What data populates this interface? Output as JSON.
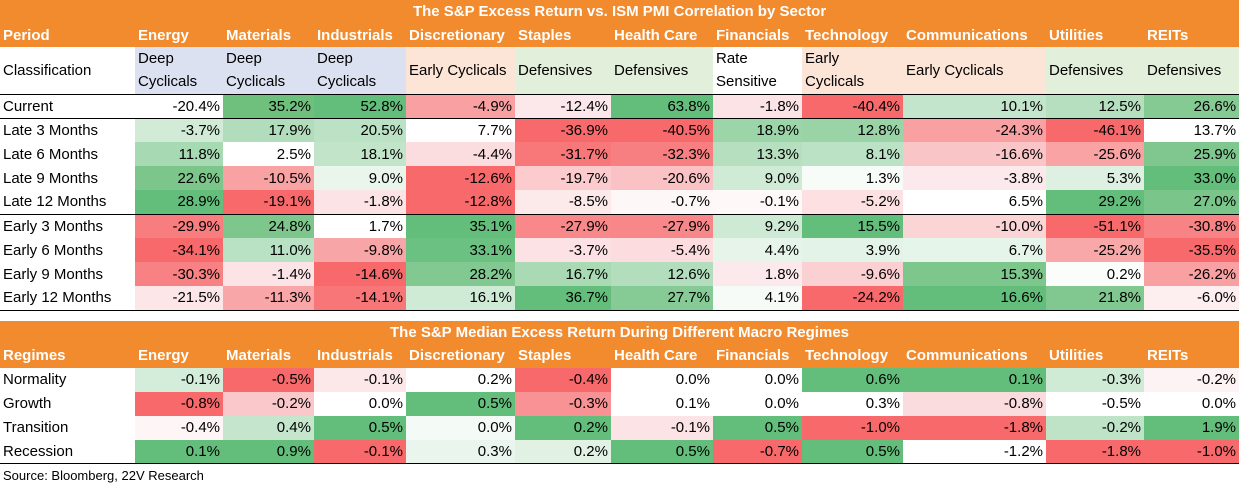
{
  "table1": {
    "title": "The S&P Excess Return vs. ISM PMI Correlation by Sector",
    "period_label": "Period",
    "columns": [
      "Energy",
      "Materials",
      "Industrials",
      "Discretionary",
      "Staples",
      "Health Care",
      "Financials",
      "Technology",
      "Communications",
      "Utilities",
      "REITs"
    ],
    "classification_label": "Classification",
    "classifications": [
      "Deep Cyclicals",
      "Deep Cyclicals",
      "Deep Cyclicals",
      "Early Cyclicals",
      "Defensives",
      "Defensives",
      "Rate Sensitive",
      "Early Cyclicals",
      "Early Cyclicals",
      "Defensives",
      "Defensives"
    ],
    "classification_colors": [
      "#DCE1F1",
      "#DCE1F1",
      "#DCE1F1",
      "#FCE4D6",
      "#E2EFDA",
      "#E2EFDA",
      "#FFFFFF",
      "#FCE4D6",
      "#FCE4D6",
      "#E2EFDA",
      "#E2EFDA"
    ],
    "rows": [
      {
        "label": "Current",
        "values": [
          "-20.4%",
          "35.2%",
          "52.8%",
          "-4.9%",
          "-12.4%",
          "63.8%",
          "-1.8%",
          "-40.4%",
          "10.1%",
          "12.5%",
          "26.6%"
        ],
        "colors": [
          "#FFFFFF",
          "#70C07D",
          "#63BE7B",
          "#F8A0A2",
          "#FCE8EA",
          "#63BE7B",
          "#FBE3E6",
          "#F8696B",
          "#C3E5CB",
          "#B5DFBF",
          "#85C993"
        ]
      },
      {
        "label": "Late 3 Months",
        "values": [
          "-3.7%",
          "17.9%",
          "20.5%",
          "7.7%",
          "-36.9%",
          "-40.5%",
          "18.9%",
          "12.8%",
          "-24.3%",
          "-46.1%",
          "13.7%"
        ],
        "colors": [
          "#D2EBD7",
          "#B2DDBC",
          "#BCE2C5",
          "#FFFFFF",
          "#F8696B",
          "#F8696B",
          "#9CD5A8",
          "#9AD4A6",
          "#F9A0A2",
          "#F8696B",
          "#FFFFFF"
        ]
      },
      {
        "label": "Late 6 Months",
        "values": [
          "11.8%",
          "2.5%",
          "18.1%",
          "-4.4%",
          "-31.7%",
          "-32.3%",
          "13.3%",
          "8.1%",
          "-16.6%",
          "-25.6%",
          "25.9%"
        ],
        "colors": [
          "#A7D9B2",
          "#FFFFFF",
          "#C2E5CA",
          "#FBDDE0",
          "#F8787A",
          "#F87F81",
          "#B6DFBF",
          "#BBE2C4",
          "#FAC5C7",
          "#F9A3A5",
          "#7FC78E"
        ]
      },
      {
        "label": "Late 9 Months",
        "values": [
          "22.6%",
          "-10.5%",
          "9.0%",
          "-12.6%",
          "-19.7%",
          "-20.6%",
          "9.0%",
          "1.3%",
          "-3.8%",
          "5.3%",
          "33.0%"
        ],
        "colors": [
          "#7CC68B",
          "#F9A2A4",
          "#EAF6EC",
          "#F8696B",
          "#FBCBCD",
          "#FAC2C4",
          "#CFEAD5",
          "#F8FCF9",
          "#FCE9EB",
          "#DDF0E1",
          "#63BE7B"
        ]
      },
      {
        "label": "Late 12 Months",
        "values": [
          "28.9%",
          "-19.1%",
          "-1.8%",
          "-12.8%",
          "-8.5%",
          "-0.7%",
          "-0.1%",
          "-5.2%",
          "6.5%",
          "29.2%",
          "27.0%"
        ],
        "colors": [
          "#63BE7B",
          "#F8696B",
          "#FCE4E6",
          "#F8696B",
          "#FCE9EA",
          "#FDF7F8",
          "#FEF8F9",
          "#FCE0E2",
          "#FFFFFF",
          "#63BE7B",
          "#7AC58A"
        ]
      },
      {
        "label": "Early 3 Months",
        "values": [
          "-29.9%",
          "24.8%",
          "1.7%",
          "35.1%",
          "-27.9%",
          "-27.9%",
          "9.2%",
          "15.5%",
          "-10.0%",
          "-51.1%",
          "-30.8%"
        ],
        "colors": [
          "#F87D7F",
          "#7DC68C",
          "#FFFFFF",
          "#63BE7B",
          "#F8888A",
          "#F8878A",
          "#CEEAD4",
          "#63BE7B",
          "#FBD4D6",
          "#F8696B",
          "#F88385"
        ]
      },
      {
        "label": "Early 6 Months",
        "values": [
          "-34.1%",
          "11.0%",
          "-9.8%",
          "33.1%",
          "-3.7%",
          "-5.4%",
          "4.4%",
          "3.9%",
          "6.7%",
          "-25.2%",
          "-35.5%"
        ],
        "colors": [
          "#F8696B",
          "#B9E1C3",
          "#F8A5A7",
          "#6BC182",
          "#FCE2E4",
          "#FCDCDE",
          "#E6F4E9",
          "#E4F3E7",
          "#E6F5E9",
          "#F9A8AA",
          "#F8696B"
        ]
      },
      {
        "label": "Early 9 Months",
        "values": [
          "-30.3%",
          "-1.4%",
          "-14.6%",
          "28.2%",
          "16.7%",
          "12.6%",
          "1.8%",
          "-9.6%",
          "15.3%",
          "0.2%",
          "-26.2%"
        ],
        "colors": [
          "#F88183",
          "#FCE4E6",
          "#F8696B",
          "#82C991",
          "#A9DAB4",
          "#B3DEBD",
          "#FCE9EB",
          "#FBD0D2",
          "#7DC68C",
          "#FBFDFB",
          "#F8A0A2"
        ]
      },
      {
        "label": "Early 12 Months",
        "values": [
          "-21.5%",
          "-11.3%",
          "-14.1%",
          "16.1%",
          "36.7%",
          "27.7%",
          "4.1%",
          "-24.2%",
          "16.6%",
          "21.8%",
          "-6.0%"
        ],
        "colors": [
          "#FCE6E8",
          "#F9A6A8",
          "#F87678",
          "#CFEAD5",
          "#63BE7B",
          "#86CA95",
          "#F6FBF7",
          "#F8696B",
          "#63BE7B",
          "#80C88F",
          "#FDEEEF"
        ]
      }
    ]
  },
  "table2": {
    "title": "The S&P Median Excess Return During Different Macro Regimes",
    "regimes_label": "Regimes",
    "columns": [
      "Energy",
      "Materials",
      "Industrials",
      "Discretionary",
      "Staples",
      "Health Care",
      "Financials",
      "Technology",
      "Communications",
      "Utilities",
      "REITs"
    ],
    "rows": [
      {
        "label": "Normality",
        "values": [
          "-0.1%",
          "-0.5%",
          "-0.1%",
          "0.2%",
          "-0.4%",
          "0.0%",
          "0.0%",
          "0.6%",
          "0.1%",
          "-0.3%",
          "-0.2%"
        ],
        "colors": [
          "#D4ECDA",
          "#F8696B",
          "#FCE7E9",
          "#FFFFFF",
          "#F8696B",
          "#FFFFFF",
          "#FFFFFF",
          "#63BE7B",
          "#63BE7B",
          "#CFEAD5",
          "#FEF3F4"
        ]
      },
      {
        "label": "Growth",
        "values": [
          "-0.8%",
          "-0.2%",
          "0.0%",
          "0.5%",
          "-0.3%",
          "0.1%",
          "0.0%",
          "0.3%",
          "-0.8%",
          "-0.5%",
          "0.0%"
        ],
        "colors": [
          "#F8696B",
          "#FAC8CA",
          "#FFFFFF",
          "#63BE7B",
          "#F89295",
          "#FFFFFF",
          "#FFFFFF",
          "#FFFFFF",
          "#FBDCDE",
          "#FFFFFF",
          "#FFFFFF"
        ]
      },
      {
        "label": "Transition",
        "values": [
          "-0.4%",
          "0.4%",
          "0.5%",
          "0.0%",
          "0.2%",
          "-0.1%",
          "0.5%",
          "-1.0%",
          "-1.8%",
          "-0.2%",
          "1.9%"
        ],
        "colors": [
          "#FEF5F6",
          "#C5E6CD",
          "#63BE7B",
          "#F4FAF6",
          "#63BE7B",
          "#FCE3E5",
          "#63BE7B",
          "#F8696B",
          "#F8696B",
          "#BEE3C7",
          "#63BE7B"
        ]
      },
      {
        "label": "Recession",
        "values": [
          "0.1%",
          "0.9%",
          "-0.1%",
          "0.3%",
          "0.2%",
          "0.5%",
          "-0.7%",
          "0.5%",
          "-1.2%",
          "-1.8%",
          "-1.0%"
        ],
        "colors": [
          "#63BE7B",
          "#63BE7B",
          "#F8696B",
          "#EAF6ED",
          "#E1F2E5",
          "#63BE7B",
          "#F8696B",
          "#63BE7B",
          "#FFFFFF",
          "#F8696B",
          "#F8696B"
        ]
      }
    ]
  },
  "source": "Source: Bloomberg, 22V Research"
}
